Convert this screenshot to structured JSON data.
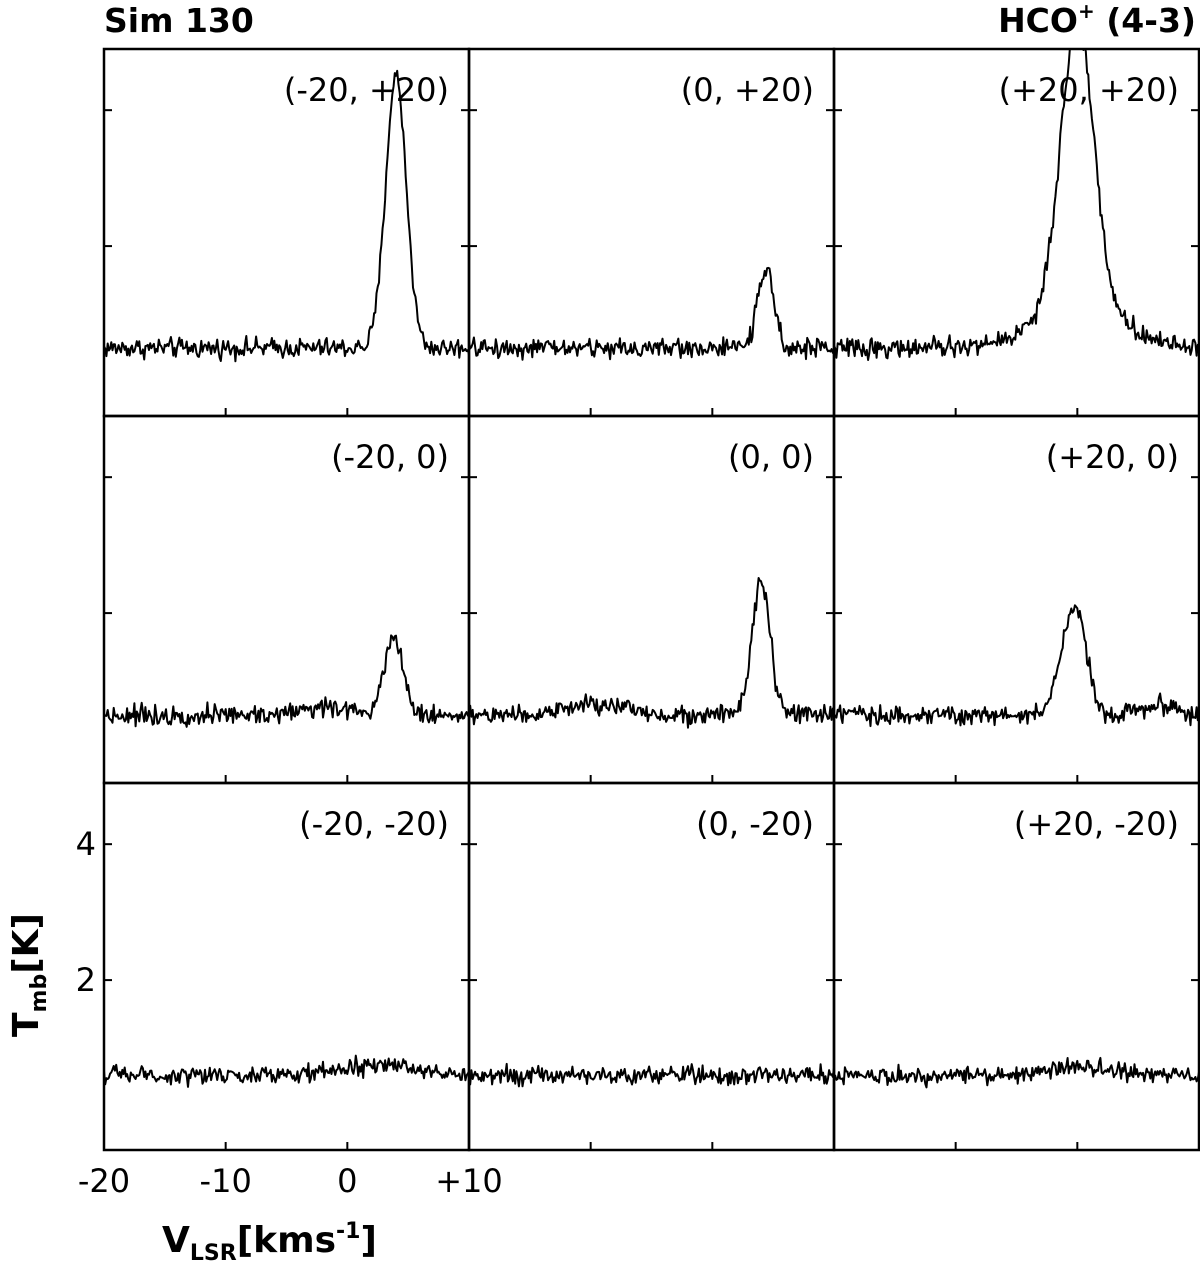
{
  "figure": {
    "left_title": "Sim 130",
    "right_title_main": "HCO",
    "right_title_sup": "+",
    "right_title_rest": " (4-3)",
    "ylabel_main": "T",
    "ylabel_sub": "mb",
    "ylabel_rest": "[K]",
    "xlabel_main": "V",
    "xlabel_sub": "LSR",
    "xlabel_rest": "[kms",
    "xlabel_sup": "-1",
    "xlabel_close": "]"
  },
  "chart_data": {
    "type": "line",
    "title": "Sim 130",
    "subtitle": "HCO+ (4-3)",
    "xlabel": "VLSR [kms-1]",
    "ylabel": "Tmb [K]",
    "xlim": [
      -20,
      10
    ],
    "ylim": [
      -0.5,
      4.9
    ],
    "x_ticks": [
      -20,
      -10,
      0,
      10
    ],
    "x_tick_labels": [
      "-20",
      "-10",
      "0",
      "+10"
    ],
    "y_ticks": [
      2,
      4
    ],
    "y_tick_labels": [
      "2",
      "4"
    ],
    "grid": false,
    "layout": "3x3 grid",
    "line_color": "#000000",
    "panels": [
      {
        "label": "(-20, +20)",
        "baseline": 0.5,
        "noise": 0.09,
        "peaks": [
          {
            "center": 4.0,
            "sigma": 0.85,
            "amp": 4.0
          }
        ]
      },
      {
        "label": "(0, +20)",
        "baseline": 0.5,
        "noise": 0.09,
        "peaks": [
          {
            "center": 4.4,
            "sigma": 0.7,
            "amp": 1.1
          }
        ]
      },
      {
        "label": "(+20, +20)",
        "baseline": 0.5,
        "noise": 0.09,
        "peaks": [
          {
            "center": 0.0,
            "sigma": 1.35,
            "amp": 4.2
          },
          {
            "center": 0.2,
            "sigma": 3.6,
            "amp": 0.6
          }
        ]
      },
      {
        "label": "(-20, 0)",
        "baseline": 0.5,
        "noise": 0.09,
        "peaks": [
          {
            "center": 3.8,
            "sigma": 0.8,
            "amp": 1.15
          },
          {
            "center": -2.0,
            "sigma": 2.0,
            "amp": 0.12
          }
        ]
      },
      {
        "label": "(0, 0)",
        "baseline": 0.5,
        "noise": 0.09,
        "peaks": [
          {
            "center": 4.0,
            "sigma": 0.75,
            "amp": 1.95
          },
          {
            "center": -9.5,
            "sigma": 2.5,
            "amp": 0.15
          }
        ]
      },
      {
        "label": "(+20, 0)",
        "baseline": 0.5,
        "noise": 0.09,
        "peaks": [
          {
            "center": -0.3,
            "sigma": 1.0,
            "amp": 1.6
          },
          {
            "center": 6.5,
            "sigma": 1.5,
            "amp": 0.15
          }
        ]
      },
      {
        "label": "(-20, -20)",
        "baseline": 0.6,
        "noise": 0.08,
        "peaks": [
          {
            "center": 3.0,
            "sigma": 3.0,
            "amp": 0.15
          }
        ]
      },
      {
        "label": "(0, -20)",
        "baseline": 0.6,
        "noise": 0.08,
        "peaks": []
      },
      {
        "label": "(+20, -20)",
        "baseline": 0.6,
        "noise": 0.08,
        "peaks": [
          {
            "center": 0.0,
            "sigma": 2.5,
            "amp": 0.12
          }
        ]
      }
    ]
  }
}
